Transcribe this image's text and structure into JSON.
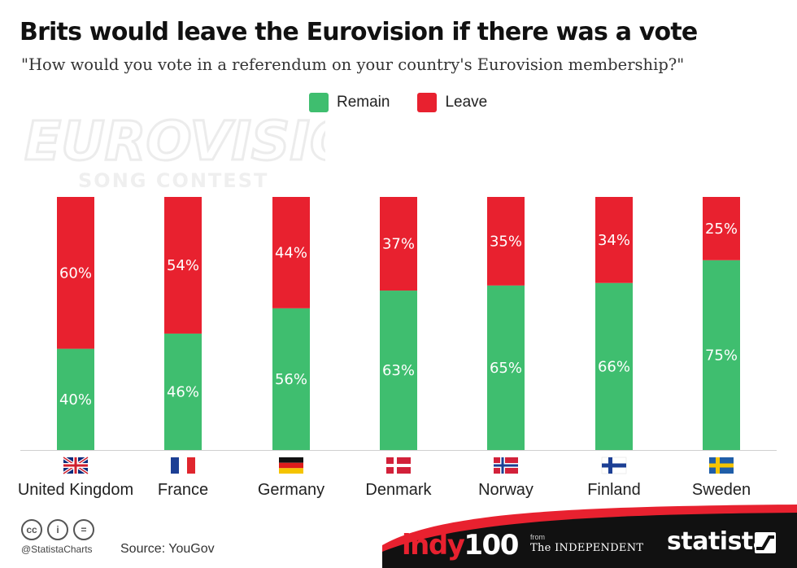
{
  "header": {
    "title": "Brits would leave the Eurovision if there was a vote",
    "subtitle": "\"How would you vote in a referendum on your country's Eurovision membership?\""
  },
  "legend": [
    {
      "label": "Remain",
      "color": "#3fbe6f"
    },
    {
      "label": "Leave",
      "color": "#e8212f"
    }
  ],
  "watermark": {
    "line1": "EUROVISION",
    "line2": "SONG CONTEST"
  },
  "chart_data": {
    "type": "bar",
    "stacked": true,
    "categories": [
      "United Kingdom",
      "France",
      "Germany",
      "Denmark",
      "Norway",
      "Finland",
      "Sweden"
    ],
    "series": [
      {
        "name": "Remain",
        "values": [
          40,
          46,
          56,
          63,
          65,
          66,
          75
        ],
        "color": "#3fbe6f"
      },
      {
        "name": "Leave",
        "values": [
          60,
          54,
          44,
          37,
          35,
          34,
          25
        ],
        "color": "#e8212f"
      }
    ],
    "value_suffix": "%",
    "ylim": [
      0,
      100
    ],
    "grid": false,
    "legend_position": "top"
  },
  "flags": [
    "uk-flag",
    "france-flag",
    "germany-flag",
    "denmark-flag",
    "norway-flag",
    "finland-flag",
    "sweden-flag"
  ],
  "footer": {
    "cc_icons": [
      "cc",
      "i",
      "="
    ],
    "handle": "@StatistaCharts",
    "source": "Source: YouGov",
    "indy_brand": "indy",
    "indy_number": "100",
    "from_label": "from",
    "independent_label": "The INDEPENDENT",
    "statista_label": "statista"
  },
  "colors": {
    "remain": "#3fbe6f",
    "leave": "#e8212f",
    "footer": "#111111"
  }
}
